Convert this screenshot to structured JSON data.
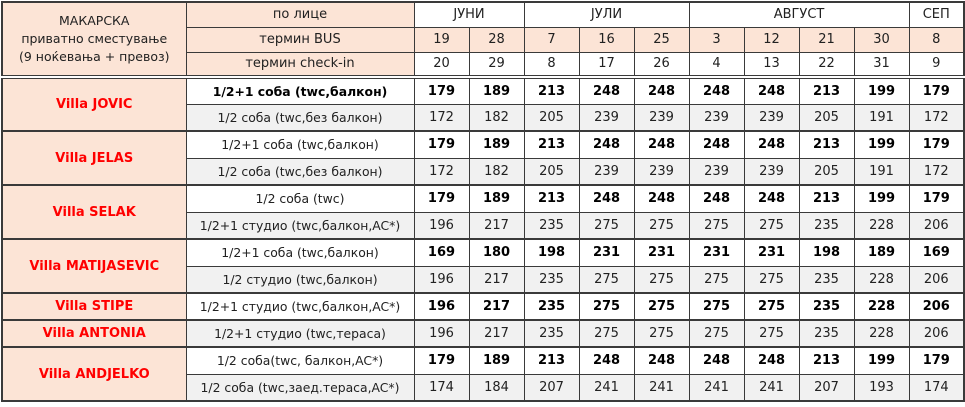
{
  "table": {
    "title_lines": [
      "МАКАРСКА",
      "приватно сместување",
      "(9 ноќевања + превоз)"
    ],
    "row_labels": {
      "per_person": "по лице",
      "bus": "термин BUS",
      "checkin": "термин check-in"
    },
    "months": [
      {
        "label": "ЈУНИ",
        "bus_dates": [
          "19",
          "28"
        ],
        "checkin_dates": [
          "20",
          "29"
        ]
      },
      {
        "label": "ЈУЛИ",
        "bus_dates": [
          "7",
          "16",
          "25"
        ],
        "checkin_dates": [
          "8",
          "17",
          "26"
        ]
      },
      {
        "label": "АВГУСТ",
        "bus_dates": [
          "3",
          "12",
          "21",
          "30"
        ],
        "checkin_dates": [
          "4",
          "13",
          "22",
          "31"
        ]
      },
      {
        "label": "СЕП",
        "bus_dates": [
          "8"
        ],
        "checkin_dates": [
          "9"
        ]
      }
    ],
    "groups": [
      {
        "villa": "Villa JOVIC",
        "rows": [
          {
            "room": "1/2+1 соба (twc,балкон)",
            "room_bold": true,
            "prices_bold": true,
            "prices": [
              "179",
              "189",
              "213",
              "248",
              "248",
              "248",
              "248",
              "213",
              "199",
              "179"
            ]
          },
          {
            "room": "1/2 соба (twc,без балкон)",
            "room_bold": false,
            "prices_bold": false,
            "prices": [
              "172",
              "182",
              "205",
              "239",
              "239",
              "239",
              "239",
              "205",
              "191",
              "172"
            ]
          }
        ]
      },
      {
        "villa": "Villa JELAS",
        "rows": [
          {
            "room": "1/2+1 соба (twc,балкон)",
            "room_bold": false,
            "prices_bold": true,
            "prices": [
              "179",
              "189",
              "213",
              "248",
              "248",
              "248",
              "248",
              "213",
              "199",
              "179"
            ]
          },
          {
            "room": "1/2 соба (twc,без балкон)",
            "room_bold": false,
            "prices_bold": false,
            "prices": [
              "172",
              "182",
              "205",
              "239",
              "239",
              "239",
              "239",
              "205",
              "191",
              "172"
            ]
          }
        ]
      },
      {
        "villa": "Villa SELAK",
        "rows": [
          {
            "room": "1/2 соба (twc)",
            "room_bold": false,
            "prices_bold": true,
            "prices": [
              "179",
              "189",
              "213",
              "248",
              "248",
              "248",
              "248",
              "213",
              "199",
              "179"
            ]
          },
          {
            "room": "1/2+1 студио (twc,балкон,AC*)",
            "room_bold": false,
            "prices_bold": false,
            "prices": [
              "196",
              "217",
              "235",
              "275",
              "275",
              "275",
              "275",
              "235",
              "228",
              "206"
            ]
          }
        ]
      },
      {
        "villa": "Villa MATIJASEVIC",
        "rows": [
          {
            "room": "1/2+1 соба (twc,балкон)",
            "room_bold": false,
            "prices_bold": true,
            "prices": [
              "169",
              "180",
              "198",
              "231",
              "231",
              "231",
              "231",
              "198",
              "189",
              "169"
            ]
          },
          {
            "room": "1/2 студио (twc,балкон)",
            "room_bold": false,
            "prices_bold": false,
            "prices": [
              "196",
              "217",
              "235",
              "275",
              "275",
              "275",
              "275",
              "235",
              "228",
              "206"
            ]
          }
        ]
      },
      {
        "villa": "Villa STIPE",
        "rows": [
          {
            "room": "1/2+1 студио (twc,балкон,AC*)",
            "room_bold": false,
            "prices_bold": true,
            "prices": [
              "196",
              "217",
              "235",
              "275",
              "275",
              "275",
              "275",
              "235",
              "228",
              "206"
            ]
          }
        ]
      },
      {
        "villa": "Villa ANTONIA",
        "rows": [
          {
            "room": "1/2+1 студио (twc,тераса)",
            "room_bold": false,
            "prices_bold": false,
            "prices": [
              "196",
              "217",
              "235",
              "275",
              "275",
              "275",
              "275",
              "235",
              "228",
              "206"
            ]
          }
        ]
      },
      {
        "villa": "Villa ANDJELKO",
        "rows": [
          {
            "room": "1/2 соба(twc, балкон,AC*)",
            "room_bold": false,
            "prices_bold": true,
            "prices": [
              "179",
              "189",
              "213",
              "248",
              "248",
              "248",
              "248",
              "213",
              "199",
              "179"
            ]
          },
          {
            "room": "1/2 соба (twc,заед.тераса,AC*)",
            "room_bold": false,
            "prices_bold": false,
            "prices": [
              "174",
              "184",
              "207",
              "241",
              "241",
              "241",
              "241",
              "207",
              "193",
              "174"
            ]
          }
        ]
      }
    ],
    "colors": {
      "peach_fill": "#fce4d6",
      "row_shade": "#f1f1f1",
      "villa_text": "#ff0000",
      "border": "#3a3a3a"
    }
  }
}
